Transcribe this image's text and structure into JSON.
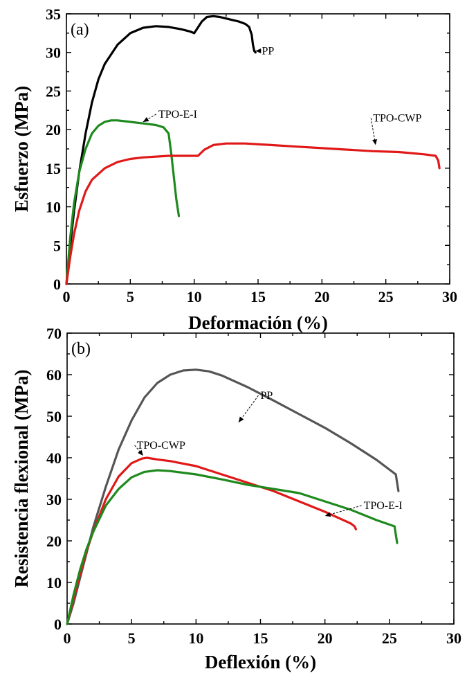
{
  "chart_data": [
    {
      "type": "line",
      "panel_label": "(a)",
      "xlabel": "Deformación (%)",
      "ylabel": "Esfuerzo (MPa)",
      "xlim": [
        0,
        30
      ],
      "ylim": [
        0,
        35
      ],
      "xticks": [
        0,
        5,
        10,
        15,
        20,
        25,
        30
      ],
      "yticks": [
        0,
        5,
        10,
        15,
        20,
        25,
        30,
        35
      ],
      "grid": false,
      "series": [
        {
          "name": "PP",
          "color": "#000000",
          "x": [
            0,
            0.3,
            0.6,
            1.0,
            1.5,
            2.0,
            2.5,
            3.0,
            4.0,
            5.0,
            6.0,
            7.0,
            8.0,
            9.0,
            9.7,
            10.0,
            10.2,
            10.6,
            11.0,
            11.5,
            12.0,
            12.5,
            13.0,
            13.5,
            14.0,
            14.3,
            14.5,
            14.6,
            14.7,
            14.8
          ],
          "y": [
            0,
            5,
            9.5,
            14.5,
            19.5,
            23.5,
            26.5,
            28.5,
            31.0,
            32.5,
            33.2,
            33.4,
            33.3,
            33.0,
            32.7,
            32.5,
            33.0,
            34.0,
            34.6,
            34.7,
            34.6,
            34.4,
            34.2,
            34.0,
            33.7,
            33.3,
            32.3,
            31.0,
            30.2,
            30.0
          ]
        },
        {
          "name": "TPO-E-I",
          "color": "#1e8a1e",
          "x": [
            0,
            0.3,
            0.6,
            1.0,
            1.5,
            2.0,
            2.5,
            3.0,
            3.5,
            4.0,
            5.0,
            6.0,
            7.0,
            7.6,
            8.0,
            8.2,
            8.4,
            8.6,
            8.8
          ],
          "y": [
            0,
            6,
            10.5,
            14.5,
            17.5,
            19.5,
            20.5,
            21.0,
            21.2,
            21.2,
            21.0,
            20.8,
            20.6,
            20.3,
            19.5,
            17.0,
            14.0,
            11.0,
            8.8
          ]
        },
        {
          "name": "TPO-CWP",
          "color": "#e01818",
          "x": [
            0,
            0.3,
            0.6,
            1.0,
            1.5,
            2.0,
            3.0,
            4.0,
            5.0,
            6.0,
            8.0,
            10.0,
            10.3,
            10.8,
            11.5,
            12.5,
            14.0,
            16.0,
            18.0,
            20.0,
            22.0,
            24.0,
            26.0,
            28.0,
            28.9,
            29.1,
            29.2
          ],
          "y": [
            0,
            3.5,
            6.5,
            9.5,
            12.0,
            13.5,
            15.0,
            15.8,
            16.2,
            16.4,
            16.6,
            16.6,
            16.6,
            17.4,
            18.0,
            18.2,
            18.2,
            18.0,
            17.8,
            17.6,
            17.4,
            17.2,
            17.1,
            16.8,
            16.6,
            16.0,
            15.0
          ]
        }
      ],
      "annotations": [
        {
          "text": "PP",
          "x": 15.3,
          "y": 30.2,
          "arrow_to": [
            14.8,
            30.2
          ]
        },
        {
          "text": "TPO-E-I",
          "x": 7.2,
          "y": 22.0,
          "arrow_to": [
            6.0,
            21.0
          ]
        },
        {
          "text": "TPO-CWP",
          "x": 24.0,
          "y": 21.5,
          "arrow_to": [
            24.2,
            18.0
          ]
        }
      ]
    },
    {
      "type": "line",
      "panel_label": "(b)",
      "xlabel": "Deflexión  (%)",
      "ylabel": "Resistencia flexional (MPa)",
      "xlim": [
        0,
        30
      ],
      "ylim": [
        0,
        70
      ],
      "xticks": [
        0,
        5,
        10,
        15,
        20,
        25,
        30
      ],
      "yticks": [
        0,
        10,
        20,
        30,
        40,
        50,
        60,
        70
      ],
      "grid": false,
      "series": [
        {
          "name": "PP",
          "color": "#555555",
          "x": [
            0,
            0.5,
            1.0,
            1.5,
            2.0,
            3.0,
            4.0,
            5.0,
            6.0,
            7.0,
            8.0,
            9.0,
            10.0,
            11.0,
            12.0,
            14.0,
            16.0,
            18.0,
            20.0,
            22.0,
            24.0,
            25.5,
            25.6,
            25.7
          ],
          "y": [
            0,
            5,
            11,
            17,
            23,
            33,
            42,
            49,
            54.5,
            58,
            60,
            61,
            61.2,
            60.8,
            59.8,
            57.0,
            53.8,
            50.5,
            47.2,
            43.5,
            39.5,
            36.0,
            34.0,
            32.0
          ]
        },
        {
          "name": "TPO-CWP",
          "color": "#e01818",
          "x": [
            0,
            0.5,
            1.0,
            1.5,
            2.0,
            3.0,
            4.0,
            5.0,
            5.8,
            6.2,
            7.0,
            8.0,
            10.0,
            12.0,
            14.0,
            16.0,
            18.0,
            20.0,
            22.0,
            22.3,
            22.4
          ],
          "y": [
            0,
            6,
            12,
            17.5,
            22,
            30,
            35.5,
            38.7,
            39.8,
            40.0,
            39.6,
            39.2,
            38.0,
            36.0,
            34.0,
            32.0,
            29.5,
            27.0,
            24.2,
            23.5,
            22.8
          ]
        },
        {
          "name": "TPO-E-I",
          "color": "#1e8a1e",
          "x": [
            0,
            0.5,
            1.0,
            1.5,
            2.0,
            3.0,
            4.0,
            5.0,
            6.0,
            7.0,
            8.0,
            10.0,
            12.0,
            14.0,
            16.0,
            18.0,
            20.0,
            22.0,
            24.0,
            25.4,
            25.5,
            25.6
          ],
          "y": [
            0,
            7,
            13,
            18,
            22,
            28.5,
            32.5,
            35.3,
            36.6,
            37.0,
            36.8,
            36.0,
            34.8,
            33.5,
            32.5,
            31.5,
            29.5,
            27.5,
            25.0,
            23.5,
            21.5,
            19.5
          ]
        }
      ],
      "annotations": [
        {
          "text": "PP",
          "x": 15.0,
          "y": 55.0,
          "arrow_to": [
            13.3,
            48.5
          ]
        },
        {
          "text": "TPO-CWP",
          "x": 5.4,
          "y": 43.0,
          "arrow_to": [
            5.9,
            40.5
          ]
        },
        {
          "text": "TPO-E-I",
          "x": 23.0,
          "y": 28.5,
          "arrow_to": [
            20.0,
            26.0
          ]
        }
      ]
    }
  ]
}
